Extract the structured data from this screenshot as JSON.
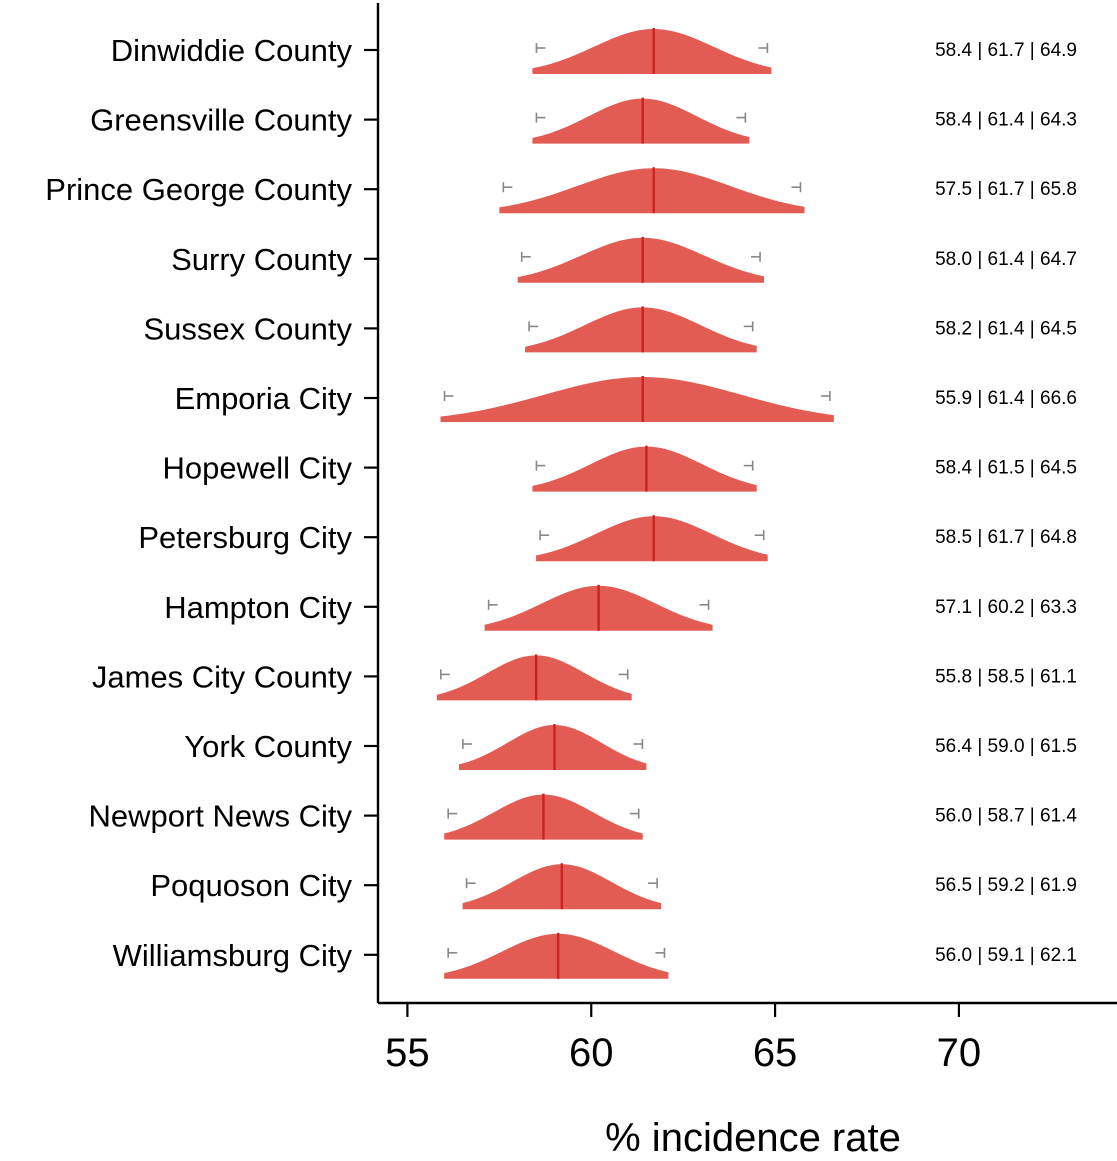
{
  "chart_data": {
    "type": "area",
    "title": "",
    "xlabel": "% incidence rate",
    "ylabel": "",
    "xlim": [
      54.2,
      74.3
    ],
    "xticks": [
      55,
      60,
      65,
      70
    ],
    "xtick_labels": [
      "55",
      "60",
      "65",
      "70"
    ],
    "grid": false,
    "legend": "none",
    "colors": {
      "fill": "#e35c54",
      "median_line": "#c8231e",
      "whisker": "#888888",
      "axis": "#000000"
    },
    "rows": [
      {
        "name": "Dinwiddie County",
        "low": 58.4,
        "median": 61.7,
        "high": 64.9,
        "label": "58.4 | 61.7 | 64.9"
      },
      {
        "name": "Greensville County",
        "low": 58.4,
        "median": 61.4,
        "high": 64.3,
        "label": "58.4 | 61.4 | 64.3"
      },
      {
        "name": "Prince George County",
        "low": 57.5,
        "median": 61.7,
        "high": 65.8,
        "label": "57.5 | 61.7 | 65.8"
      },
      {
        "name": "Surry County",
        "low": 58.0,
        "median": 61.4,
        "high": 64.7,
        "label": "58.0 | 61.4 | 64.7"
      },
      {
        "name": "Sussex County",
        "low": 58.2,
        "median": 61.4,
        "high": 64.5,
        "label": "58.2 | 61.4 | 64.5"
      },
      {
        "name": "Emporia City",
        "low": 55.9,
        "median": 61.4,
        "high": 66.6,
        "label": "55.9 | 61.4 | 66.6"
      },
      {
        "name": "Hopewell City",
        "low": 58.4,
        "median": 61.5,
        "high": 64.5,
        "label": "58.4 | 61.5 | 64.5"
      },
      {
        "name": "Petersburg City",
        "low": 58.5,
        "median": 61.7,
        "high": 64.8,
        "label": "58.5 | 61.7 | 64.8"
      },
      {
        "name": "Hampton City",
        "low": 57.1,
        "median": 60.2,
        "high": 63.3,
        "label": "57.1 | 60.2 | 63.3"
      },
      {
        "name": "James City County",
        "low": 55.8,
        "median": 58.5,
        "high": 61.1,
        "label": "55.8 | 58.5 | 61.1"
      },
      {
        "name": "York County",
        "low": 56.4,
        "median": 59.0,
        "high": 61.5,
        "label": "56.4 | 59.0 | 61.5"
      },
      {
        "name": "Newport News City",
        "low": 56.0,
        "median": 58.7,
        "high": 61.4,
        "label": "56.0 | 58.7 | 61.4"
      },
      {
        "name": "Poquoson City",
        "low": 56.5,
        "median": 59.2,
        "high": 61.9,
        "label": "56.5 | 59.2 | 61.9"
      },
      {
        "name": "Williamsburg City",
        "low": 56.0,
        "median": 59.1,
        "high": 62.1,
        "label": "56.0 | 59.1 | 62.1"
      }
    ]
  }
}
